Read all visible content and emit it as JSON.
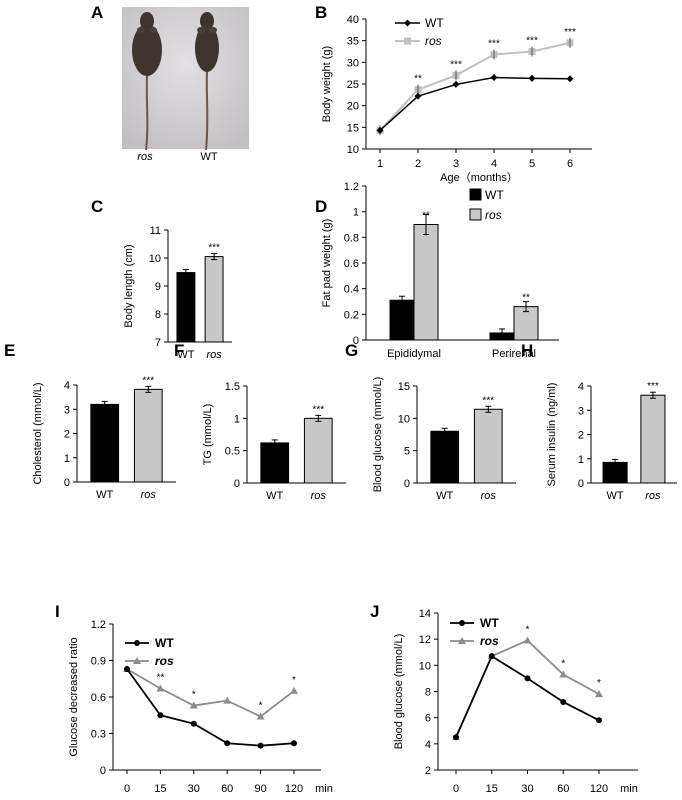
{
  "colors": {
    "wt": "#000000",
    "ros_sq": "#c0c0c0",
    "ros_tri": "#8c8c8c",
    "bar_wt": "#000000",
    "bar_ros": "#c8c8c8"
  },
  "panelA": {
    "letter": "A",
    "labels": [
      "ros",
      "WT"
    ]
  },
  "chart_data": [
    {
      "panel": "B",
      "type": "line",
      "x": [
        1,
        2,
        3,
        4,
        5,
        6
      ],
      "xlabel": "Age（months）",
      "ylabel": "Body weight (g)",
      "ylim": [
        10,
        40
      ],
      "yticks": [
        "10",
        "15",
        "20",
        "25",
        "30",
        "35",
        "40"
      ],
      "xticks": [
        "1",
        "2",
        "3",
        "4",
        "5",
        "6"
      ],
      "series": [
        {
          "name": "WT",
          "values": [
            14.3,
            22.2,
            24.9,
            26.5,
            26.3,
            26.2
          ]
        },
        {
          "name": "ros",
          "values": [
            14.3,
            23.7,
            27.0,
            31.8,
            32.5,
            34.5
          ]
        }
      ],
      "significance": [
        "",
        "**",
        "***",
        "***",
        "***",
        "***"
      ],
      "legend": "top-left"
    },
    {
      "panel": "C",
      "type": "bar",
      "categories": [
        "WT",
        "ros"
      ],
      "values": [
        9.48,
        10.05
      ],
      "ylabel": "Body length (cm)",
      "ylim": [
        7,
        11
      ],
      "yticks": [
        "7",
        "8",
        "9",
        "10",
        "11"
      ],
      "significance": [
        "",
        "***"
      ]
    },
    {
      "panel": "D",
      "type": "bar",
      "categories": [
        "Epididymal",
        "Perirenal"
      ],
      "series": [
        {
          "name": "WT",
          "values": [
            0.31,
            0.055
          ]
        },
        {
          "name": "ros",
          "values": [
            0.9,
            0.26
          ]
        }
      ],
      "ylabel": "Fat pad weight (g)",
      "ylim": [
        0,
        1.2
      ],
      "yticks": [
        "0",
        "0.2",
        "0.4",
        "0.6",
        "0.8",
        "1",
        "1.2"
      ],
      "significance": [
        "**",
        "**"
      ],
      "legend": "top-right"
    },
    {
      "panel": "E",
      "type": "bar",
      "categories": [
        "WT",
        "ros"
      ],
      "values": [
        3.2,
        3.82
      ],
      "ylabel": "Cholesterol (mmol/L)",
      "ylim": [
        0,
        4
      ],
      "yticks": [
        "0",
        "1",
        "2",
        "3",
        "4"
      ],
      "significance": [
        "",
        "***"
      ]
    },
    {
      "panel": "F",
      "type": "bar",
      "categories": [
        "WT",
        "ros"
      ],
      "values": [
        0.62,
        1.0
      ],
      "ylabel": "TG (mmol/L)",
      "ylim": [
        0,
        1.5
      ],
      "yticks": [
        "0",
        "0.5",
        "1",
        "1.5"
      ],
      "significance": [
        "",
        "***"
      ]
    },
    {
      "panel": "G",
      "type": "bar",
      "categories": [
        "WT",
        "ros"
      ],
      "values": [
        8.0,
        11.4
      ],
      "ylabel": "Blood glucose (mmol/L)",
      "ylim": [
        0,
        15
      ],
      "yticks": [
        "0",
        "5",
        "10",
        "15"
      ],
      "significance": [
        "",
        "***"
      ]
    },
    {
      "panel": "H",
      "type": "bar",
      "categories": [
        "WT",
        "ros"
      ],
      "values": [
        0.85,
        3.62
      ],
      "ylabel": "Serum insulin (ng/ml)",
      "ylim": [
        0,
        4
      ],
      "yticks": [
        "0",
        "1",
        "2",
        "3",
        "4"
      ],
      "significance": [
        "",
        "***"
      ]
    },
    {
      "panel": "I",
      "type": "line",
      "x": [
        "0",
        "15",
        "30",
        "60",
        "90",
        "120"
      ],
      "xunit": "min",
      "ylabel": "Glucose decreased ratio",
      "ylim": [
        0,
        1.2
      ],
      "yticks": [
        "0",
        "0.3",
        "0.6",
        "0.9",
        "1.2"
      ],
      "series": [
        {
          "name": "WT",
          "values": [
            0.83,
            0.45,
            0.38,
            0.22,
            0.2,
            0.22
          ]
        },
        {
          "name": "ros",
          "values": [
            0.83,
            0.67,
            0.53,
            0.57,
            0.44,
            0.65
          ]
        }
      ],
      "significance": [
        "",
        "**",
        "*",
        "",
        "*",
        "*"
      ],
      "legend": "top-left"
    },
    {
      "panel": "J",
      "type": "line",
      "x": [
        "0",
        "15",
        "30",
        "60",
        "120"
      ],
      "xunit": "min",
      "ylabel": "Blood glucose (mmol/L)",
      "ylim": [
        2,
        14
      ],
      "yticks": [
        "2",
        "4",
        "6",
        "8",
        "10",
        "12",
        "14"
      ],
      "series": [
        {
          "name": "WT",
          "values": [
            4.5,
            10.7,
            9.0,
            7.2,
            5.8
          ]
        },
        {
          "name": "ros",
          "values": [
            4.5,
            10.7,
            11.9,
            9.3,
            7.8
          ]
        }
      ],
      "significance": [
        "",
        "",
        "*",
        "*",
        "*"
      ],
      "legend": "top-left"
    }
  ]
}
